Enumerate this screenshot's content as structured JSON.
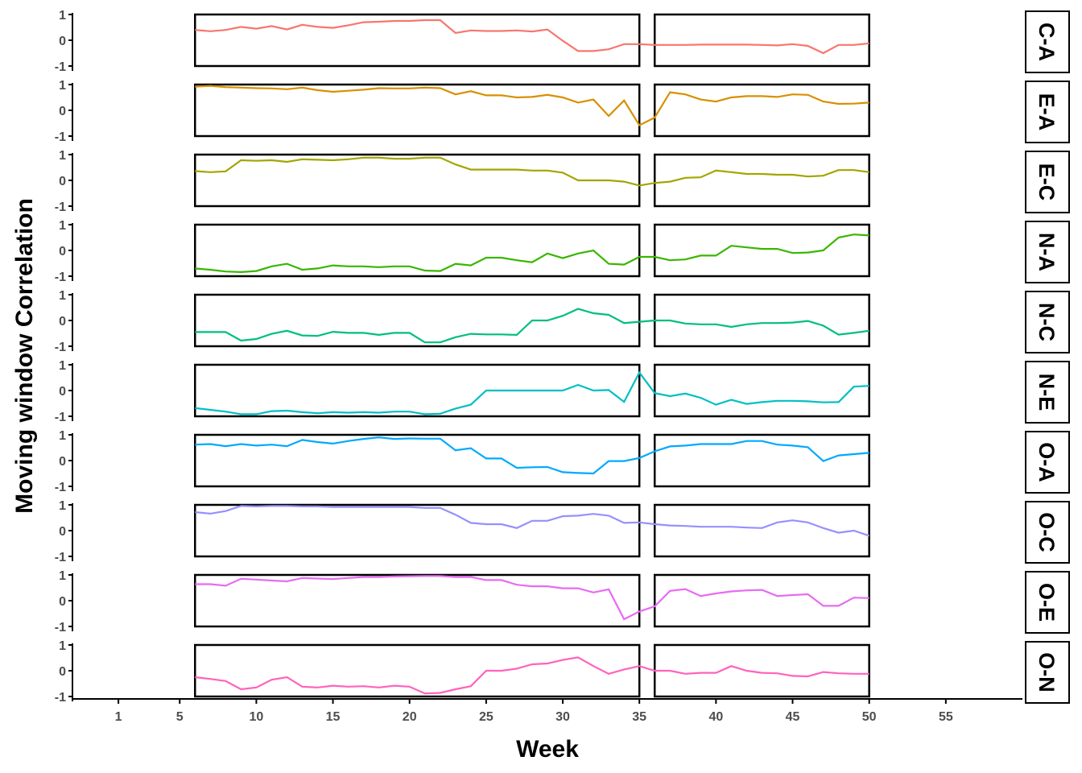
{
  "chart_data": {
    "type": "line",
    "xlabel": "Week",
    "ylabel": "Moving window Correlation",
    "xlim": [
      -2,
      60
    ],
    "ylim": [
      -1,
      1
    ],
    "x_ticks": [
      1,
      5,
      10,
      15,
      20,
      25,
      30,
      35,
      40,
      45,
      50,
      55
    ],
    "y_ticks": [
      1,
      0,
      -1
    ],
    "window_boxes": [
      [
        6,
        35
      ],
      [
        36,
        50
      ]
    ],
    "grid": false,
    "legend": "none",
    "series": [
      {
        "name": "C-A",
        "color": "#F8766D",
        "x": [
          6,
          7,
          8,
          9,
          10,
          11,
          12,
          13,
          14,
          15,
          16,
          17,
          18,
          19,
          20,
          21,
          22,
          23,
          24,
          25,
          26,
          27,
          28,
          29,
          30,
          31,
          32,
          33,
          34,
          35,
          36,
          37,
          38,
          39,
          40,
          41,
          42,
          43,
          44,
          45,
          46,
          47,
          48,
          49,
          50
        ],
        "y": [
          0.4,
          0.35,
          0.4,
          0.52,
          0.45,
          0.55,
          0.42,
          0.6,
          0.52,
          0.48,
          0.58,
          0.7,
          0.72,
          0.75,
          0.75,
          0.78,
          0.78,
          0.28,
          0.38,
          0.36,
          0.36,
          0.38,
          0.34,
          0.42,
          -0.02,
          -0.42,
          -0.42,
          -0.35,
          -0.15,
          -0.15,
          -0.18,
          -0.18,
          -0.18,
          -0.17,
          -0.17,
          -0.17,
          -0.17,
          -0.18,
          -0.2,
          -0.15,
          -0.22,
          -0.5,
          -0.18,
          -0.18,
          -0.12
        ]
      },
      {
        "name": "E-A",
        "color": "#D89000",
        "x": [
          6,
          7,
          8,
          9,
          10,
          11,
          12,
          13,
          14,
          15,
          16,
          17,
          18,
          19,
          20,
          21,
          22,
          23,
          24,
          25,
          26,
          27,
          28,
          29,
          30,
          31,
          32,
          33,
          34,
          35,
          36,
          37,
          38,
          39,
          40,
          41,
          42,
          43,
          44,
          45,
          46,
          47,
          48,
          49,
          50
        ],
        "y": [
          0.92,
          0.95,
          0.9,
          0.88,
          0.86,
          0.85,
          0.82,
          0.88,
          0.78,
          0.72,
          0.76,
          0.8,
          0.86,
          0.85,
          0.85,
          0.88,
          0.86,
          0.62,
          0.74,
          0.58,
          0.58,
          0.5,
          0.52,
          0.6,
          0.5,
          0.3,
          0.42,
          -0.22,
          0.38,
          -0.58,
          -0.28,
          0.7,
          0.62,
          0.42,
          0.34,
          0.5,
          0.55,
          0.55,
          0.52,
          0.62,
          0.6,
          0.34,
          0.25,
          0.26,
          0.3
        ]
      },
      {
        "name": "E-C",
        "color": "#A3A500",
        "x": [
          6,
          7,
          8,
          9,
          10,
          11,
          12,
          13,
          14,
          15,
          16,
          17,
          18,
          19,
          20,
          21,
          22,
          23,
          24,
          25,
          26,
          27,
          28,
          29,
          30,
          31,
          32,
          33,
          34,
          35,
          36,
          37,
          38,
          39,
          40,
          41,
          42,
          43,
          44,
          45,
          46,
          47,
          48,
          49,
          50
        ],
        "y": [
          0.36,
          0.32,
          0.35,
          0.78,
          0.76,
          0.78,
          0.72,
          0.82,
          0.8,
          0.78,
          0.82,
          0.88,
          0.88,
          0.84,
          0.84,
          0.88,
          0.88,
          0.62,
          0.42,
          0.42,
          0.42,
          0.42,
          0.38,
          0.38,
          0.3,
          0.0,
          0.0,
          0.0,
          -0.05,
          -0.2,
          -0.1,
          -0.05,
          0.1,
          0.12,
          0.38,
          0.32,
          0.25,
          0.25,
          0.22,
          0.22,
          0.15,
          0.18,
          0.4,
          0.4,
          0.32
        ]
      },
      {
        "name": "N-A",
        "color": "#39B600",
        "x": [
          6,
          7,
          8,
          9,
          10,
          11,
          12,
          13,
          14,
          15,
          16,
          17,
          18,
          19,
          20,
          21,
          22,
          23,
          24,
          25,
          26,
          27,
          28,
          29,
          30,
          31,
          32,
          33,
          34,
          35,
          36,
          37,
          38,
          39,
          40,
          41,
          42,
          43,
          44,
          45,
          46,
          47,
          48,
          49,
          50
        ],
        "y": [
          -0.7,
          -0.75,
          -0.82,
          -0.84,
          -0.8,
          -0.62,
          -0.52,
          -0.75,
          -0.7,
          -0.58,
          -0.62,
          -0.62,
          -0.65,
          -0.62,
          -0.62,
          -0.78,
          -0.8,
          -0.52,
          -0.58,
          -0.28,
          -0.28,
          -0.38,
          -0.46,
          -0.12,
          -0.3,
          -0.12,
          0.0,
          -0.52,
          -0.55,
          -0.25,
          -0.25,
          -0.38,
          -0.35,
          -0.2,
          -0.2,
          0.18,
          0.12,
          0.06,
          0.06,
          -0.1,
          -0.08,
          0.0,
          0.5,
          0.62,
          0.58
        ]
      },
      {
        "name": "N-C",
        "color": "#00BF7D",
        "x": [
          6,
          7,
          8,
          9,
          10,
          11,
          12,
          13,
          14,
          15,
          16,
          17,
          18,
          19,
          20,
          21,
          22,
          23,
          24,
          25,
          26,
          27,
          28,
          29,
          30,
          31,
          32,
          33,
          34,
          35,
          36,
          37,
          38,
          39,
          40,
          41,
          42,
          43,
          44,
          45,
          46,
          47,
          48,
          49,
          50
        ],
        "y": [
          -0.45,
          -0.45,
          -0.45,
          -0.78,
          -0.72,
          -0.52,
          -0.4,
          -0.58,
          -0.6,
          -0.44,
          -0.48,
          -0.48,
          -0.56,
          -0.48,
          -0.48,
          -0.85,
          -0.85,
          -0.65,
          -0.52,
          -0.54,
          -0.54,
          -0.56,
          0.0,
          0.0,
          0.18,
          0.45,
          0.28,
          0.22,
          -0.1,
          -0.05,
          0.0,
          0.0,
          -0.12,
          -0.15,
          -0.15,
          -0.25,
          -0.15,
          -0.1,
          -0.1,
          -0.08,
          -0.02,
          -0.2,
          -0.55,
          -0.48,
          -0.4
        ]
      },
      {
        "name": "N-E",
        "color": "#00BFC4",
        "x": [
          6,
          7,
          8,
          9,
          10,
          11,
          12,
          13,
          14,
          15,
          16,
          17,
          18,
          19,
          20,
          21,
          22,
          23,
          24,
          25,
          26,
          27,
          28,
          29,
          30,
          31,
          32,
          33,
          34,
          35,
          36,
          37,
          38,
          39,
          40,
          41,
          42,
          43,
          44,
          45,
          46,
          47,
          48,
          49,
          50
        ],
        "y": [
          -0.68,
          -0.75,
          -0.82,
          -0.92,
          -0.92,
          -0.8,
          -0.78,
          -0.84,
          -0.88,
          -0.84,
          -0.86,
          -0.84,
          -0.86,
          -0.82,
          -0.82,
          -0.92,
          -0.9,
          -0.7,
          -0.55,
          0.0,
          0.0,
          0.0,
          0.0,
          0.0,
          0.0,
          0.22,
          0.0,
          0.02,
          -0.44,
          0.7,
          -0.1,
          -0.22,
          -0.12,
          -0.28,
          -0.55,
          -0.36,
          -0.52,
          -0.45,
          -0.4,
          -0.4,
          -0.42,
          -0.46,
          -0.45,
          0.15,
          0.18
        ]
      },
      {
        "name": "O-A",
        "color": "#00A9FF",
        "x": [
          6,
          7,
          8,
          9,
          10,
          11,
          12,
          13,
          14,
          15,
          16,
          17,
          18,
          19,
          20,
          21,
          22,
          23,
          24,
          25,
          26,
          27,
          28,
          29,
          30,
          31,
          32,
          33,
          34,
          35,
          36,
          37,
          38,
          39,
          40,
          41,
          42,
          43,
          44,
          45,
          46,
          47,
          48,
          49,
          50
        ],
        "y": [
          0.62,
          0.64,
          0.56,
          0.64,
          0.58,
          0.62,
          0.56,
          0.8,
          0.72,
          0.66,
          0.76,
          0.84,
          0.9,
          0.84,
          0.86,
          0.85,
          0.85,
          0.4,
          0.48,
          0.08,
          0.08,
          -0.28,
          -0.26,
          -0.25,
          -0.45,
          -0.48,
          -0.5,
          -0.02,
          -0.02,
          0.1,
          0.36,
          0.55,
          0.58,
          0.64,
          0.64,
          0.64,
          0.76,
          0.76,
          0.62,
          0.58,
          0.52,
          -0.02,
          0.2,
          0.25,
          0.3
        ]
      },
      {
        "name": "O-C",
        "color": "#9590FF",
        "x": [
          6,
          7,
          8,
          9,
          10,
          11,
          12,
          13,
          14,
          15,
          16,
          17,
          18,
          19,
          20,
          21,
          22,
          23,
          24,
          25,
          26,
          27,
          28,
          29,
          30,
          31,
          32,
          33,
          34,
          35,
          36,
          37,
          38,
          39,
          40,
          41,
          42,
          43,
          44,
          45,
          46,
          47,
          48,
          49,
          50
        ],
        "y": [
          0.72,
          0.66,
          0.76,
          0.96,
          0.94,
          0.96,
          0.96,
          0.94,
          0.94,
          0.92,
          0.92,
          0.92,
          0.92,
          0.92,
          0.92,
          0.88,
          0.88,
          0.62,
          0.3,
          0.25,
          0.25,
          0.1,
          0.38,
          0.38,
          0.56,
          0.58,
          0.65,
          0.58,
          0.3,
          0.32,
          0.25,
          0.2,
          0.18,
          0.15,
          0.15,
          0.15,
          0.12,
          0.1,
          0.32,
          0.4,
          0.32,
          0.1,
          -0.08,
          0.0,
          -0.2
        ]
      },
      {
        "name": "O-E",
        "color": "#E76BF3",
        "x": [
          6,
          7,
          8,
          9,
          10,
          11,
          12,
          13,
          14,
          15,
          16,
          17,
          18,
          19,
          20,
          21,
          22,
          23,
          24,
          25,
          26,
          27,
          28,
          29,
          30,
          31,
          32,
          33,
          34,
          35,
          36,
          37,
          38,
          39,
          40,
          41,
          42,
          43,
          44,
          45,
          46,
          47,
          48,
          49,
          50
        ],
        "y": [
          0.64,
          0.64,
          0.58,
          0.85,
          0.82,
          0.78,
          0.75,
          0.88,
          0.86,
          0.84,
          0.88,
          0.92,
          0.92,
          0.94,
          0.95,
          0.96,
          0.96,
          0.92,
          0.92,
          0.8,
          0.8,
          0.62,
          0.56,
          0.56,
          0.48,
          0.48,
          0.32,
          0.44,
          -0.72,
          -0.42,
          -0.22,
          0.38,
          0.45,
          0.18,
          0.28,
          0.36,
          0.4,
          0.42,
          0.18,
          0.22,
          0.25,
          -0.2,
          -0.2,
          0.12,
          0.1
        ]
      },
      {
        "name": "O-N",
        "color": "#FF62BC",
        "x": [
          6,
          7,
          8,
          9,
          10,
          11,
          12,
          13,
          14,
          15,
          16,
          17,
          18,
          19,
          20,
          21,
          22,
          23,
          24,
          25,
          26,
          27,
          28,
          29,
          30,
          31,
          32,
          33,
          34,
          35,
          36,
          37,
          38,
          39,
          40,
          41,
          42,
          43,
          44,
          45,
          46,
          47,
          48,
          49,
          50
        ],
        "y": [
          -0.25,
          -0.32,
          -0.4,
          -0.72,
          -0.65,
          -0.35,
          -0.25,
          -0.62,
          -0.65,
          -0.58,
          -0.62,
          -0.6,
          -0.65,
          -0.58,
          -0.62,
          -0.88,
          -0.86,
          -0.72,
          -0.6,
          0.0,
          0.0,
          0.08,
          0.25,
          0.28,
          0.42,
          0.52,
          0.18,
          -0.12,
          0.05,
          0.18,
          0.0,
          0.0,
          -0.12,
          -0.08,
          -0.08,
          0.18,
          0.0,
          -0.08,
          -0.1,
          -0.2,
          -0.22,
          -0.05,
          -0.1,
          -0.12,
          -0.12
        ]
      }
    ]
  }
}
